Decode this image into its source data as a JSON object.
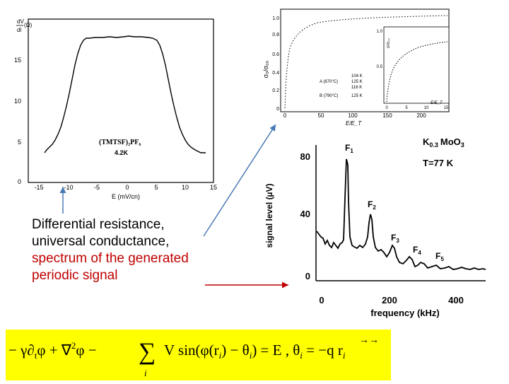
{
  "plot_dvdi": {
    "ylabel_top": "dV",
    "ylabel_bottom": "dI",
    "ylabel_unit": "(Ω)",
    "annotation_line1": "(TMTSF)₂PF₆",
    "annotation_line2": "4.2K",
    "xlabel": "E (mV/cn)",
    "x_ticks": [
      "-15",
      "-10",
      "-5",
      "0",
      "5",
      "10",
      "15"
    ],
    "y_ticks": [
      "0",
      "5",
      "10",
      "15"
    ]
  },
  "plot_conductance": {
    "ylabel": "σ₀/σ₀₀",
    "xlabel": "E/E_T",
    "y_ticks": [
      "0",
      "0.2",
      "0.4",
      "0.6",
      "0.8",
      "1.0"
    ],
    "x_ticks": [
      "0",
      "50",
      "100",
      "150",
      "200"
    ],
    "legend": [
      {
        "label": "A (670°C)",
        "temp1": "104 K",
        "temp2": "125 K",
        "temp3": "116 K"
      },
      {
        "label": "B (790°C)",
        "temp1": "125 K"
      }
    ],
    "inset_ylabel": "σ/σ₀₀",
    "inset_xlabel": "E/E_T",
    "inset_y_ticks": [
      "1.0",
      "0.5"
    ],
    "inset_x_ticks": [
      "0",
      "5",
      "10",
      "15"
    ]
  },
  "plot_spectrum": {
    "compound_prefix": "K",
    "compound_sub": "0.3",
    "compound_suffix": "MoO",
    "compound_sub2": "3",
    "temperature": "T=77  K",
    "ylabel": "signal level  (µV)",
    "xlabel": "frequency  (kHz)",
    "y_ticks": [
      "80",
      "40",
      "0"
    ],
    "x_ticks": [
      "0",
      "200",
      "400"
    ],
    "peaks": [
      "F1",
      "F2",
      "F3",
      "F4",
      "F5"
    ]
  },
  "caption": {
    "line1": "Differential resistance,",
    "line2": "universal conductance,",
    "line3": "spectrum of the generated",
    "line4": "periodic signal"
  },
  "formula": {
    "text": "−γ∂ₜφ + ∇²φ − Σᵢ V sin(φ(rᵢ) − θᵢ) = E ,  θᵢ = −q⃗ r⃗ᵢ"
  },
  "colors": {
    "arrow_blue": "#4a7ab5",
    "arrow_red": "#c00000",
    "formula_bg": "#ffff00",
    "caption_red": "#c00000"
  }
}
